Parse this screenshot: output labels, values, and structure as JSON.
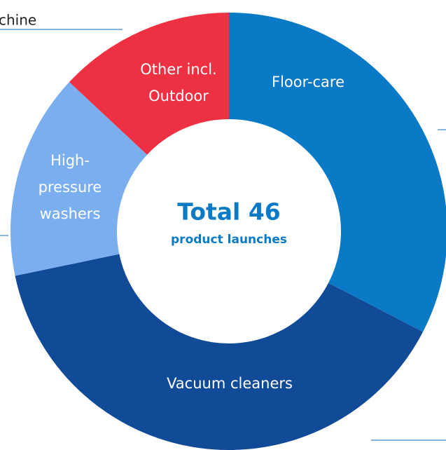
{
  "chart_data": {
    "type": "donut",
    "annotation": "chine",
    "center_title": "Total 46",
    "center_subtitle": "product launches",
    "categories": [
      [
        "Floor-care"
      ],
      [
        "Vacuum cleaners"
      ],
      [
        "High-",
        "pressure",
        "washers"
      ],
      [
        "Other incl.",
        "Outdoor"
      ]
    ],
    "values": [
      15,
      18,
      7,
      6
    ],
    "colors": [
      "#0a7ac6",
      "#114a96",
      "#7aaeef",
      "#ee3142"
    ]
  }
}
